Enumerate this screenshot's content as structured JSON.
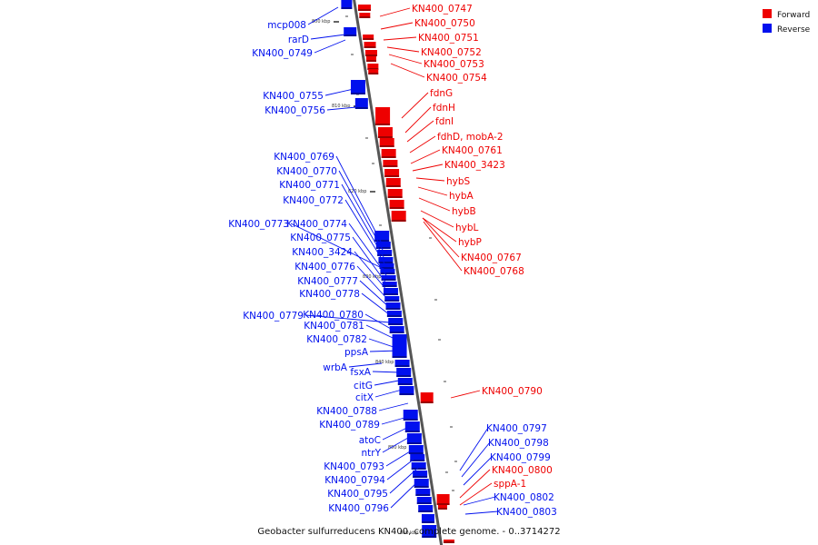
{
  "colors": {
    "forward": "#ee0000",
    "reverse": "#0010ee",
    "axis": "#555555"
  },
  "caption": "Geobacter sulfurreducens KN400, complete genome. - 0..3714272",
  "legend": [
    {
      "label": "Forward",
      "color": "#ee0000"
    },
    {
      "label": "Reverse",
      "color": "#0010ee"
    }
  ],
  "ticks": [
    "800 kbp",
    "810 kbp",
    "820 kbp",
    "830 kbp",
    "840 kbp",
    "850 kbp",
    "860 kbp"
  ],
  "forward_genes": [
    "KN400_0747",
    "KN400_0750",
    "KN400_0751",
    "KN400_0752",
    "KN400_0753",
    "KN400_0754",
    "fdnG",
    "fdnH",
    "fdnI",
    "fdhD, mobA-2",
    "KN400_0761",
    "KN400_3423",
    "hybS",
    "hybA",
    "hybB",
    "hybL",
    "hybP",
    "KN400_0767",
    "KN400_0768",
    "KN400_0790",
    "KN400_0800",
    "sppA-1"
  ],
  "reverse_genes": [
    "mcp008",
    "rarD",
    "KN400_0749",
    "KN400_0755",
    "KN400_0756",
    "KN400_0769",
    "KN400_0770",
    "KN400_0771",
    "KN400_0772",
    "KN400_0773",
    "KN400_0774",
    "KN400_0775",
    "KN400_3424",
    "KN400_0776",
    "KN400_0777",
    "KN400_0778",
    "KN400_0779",
    "KN400_0780",
    "KN400_0781",
    "KN400_0782",
    "ppsA",
    "wrbA",
    "fsxA",
    "citG",
    "citX",
    "KN400_0788",
    "KN400_0789",
    "atoC",
    "ntrY",
    "KN400_0793",
    "KN400_0794",
    "KN400_0795",
    "KN400_0796",
    "KN400_0797",
    "KN400_0798",
    "KN400_0799",
    "KN400_0802",
    "KN400_0803"
  ]
}
